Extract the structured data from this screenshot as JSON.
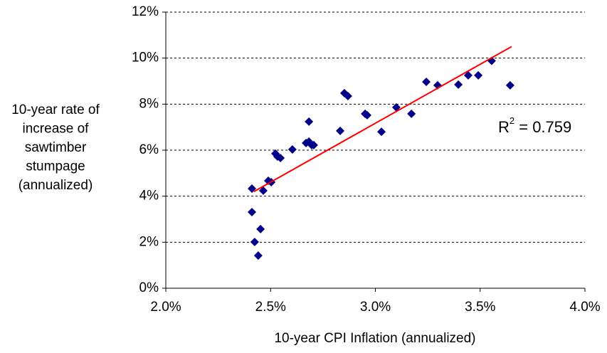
{
  "chart_data": {
    "type": "scatter",
    "x_label": "10-year CPI Inflation (annualized)",
    "y_label": [
      "10-year rate of",
      "increase of",
      "sawtimber",
      "stumpage",
      "(annualized)"
    ],
    "x": [
      2.411,
      2.411,
      2.424,
      2.452,
      2.441,
      2.465,
      2.489,
      2.503,
      2.523,
      2.533,
      2.547,
      2.604,
      2.669,
      2.683,
      2.683,
      2.696,
      2.706,
      2.832,
      2.852,
      2.869,
      2.951,
      2.961,
      3.029,
      3.1,
      3.172,
      3.243,
      3.297,
      3.396,
      3.443,
      3.491,
      3.555,
      3.643
    ],
    "y": [
      4.33,
      3.31,
      2.01,
      2.57,
      1.42,
      4.24,
      4.67,
      4.61,
      5.85,
      5.72,
      5.66,
      6.03,
      6.31,
      7.24,
      6.37,
      6.22,
      6.22,
      6.84,
      8.48,
      8.35,
      7.58,
      7.52,
      6.8,
      7.86,
      7.58,
      8.97,
      8.82,
      8.85,
      9.25,
      9.25,
      9.88,
      8.82
    ],
    "color": "#00008b",
    "trendline": {
      "x": [
        2.42,
        3.65
      ],
      "y": [
        4.2,
        10.5
      ],
      "color": "#ff0000"
    },
    "annotation": {
      "text": "R",
      "superscript": "2",
      "rest": " = 0.759"
    },
    "xlim": [
      2.0,
      4.0
    ],
    "xticks": [
      {
        "value": 2.0,
        "label": "2.0%"
      },
      {
        "value": 2.5,
        "label": "2.5%"
      },
      {
        "value": 3.0,
        "label": "3.0%"
      },
      {
        "value": 3.5,
        "label": "3.5%"
      },
      {
        "value": 4.0,
        "label": "4.0%"
      }
    ],
    "ylim": [
      0,
      12
    ],
    "yticks": [
      {
        "value": 0,
        "label": "0%"
      },
      {
        "value": 2,
        "label": "2%"
      },
      {
        "value": 4,
        "label": "4%"
      },
      {
        "value": 6,
        "label": "6%"
      },
      {
        "value": 8,
        "label": "8%"
      },
      {
        "value": 10,
        "label": "10%"
      },
      {
        "value": 12,
        "label": "12%"
      }
    ],
    "grid": true
  }
}
